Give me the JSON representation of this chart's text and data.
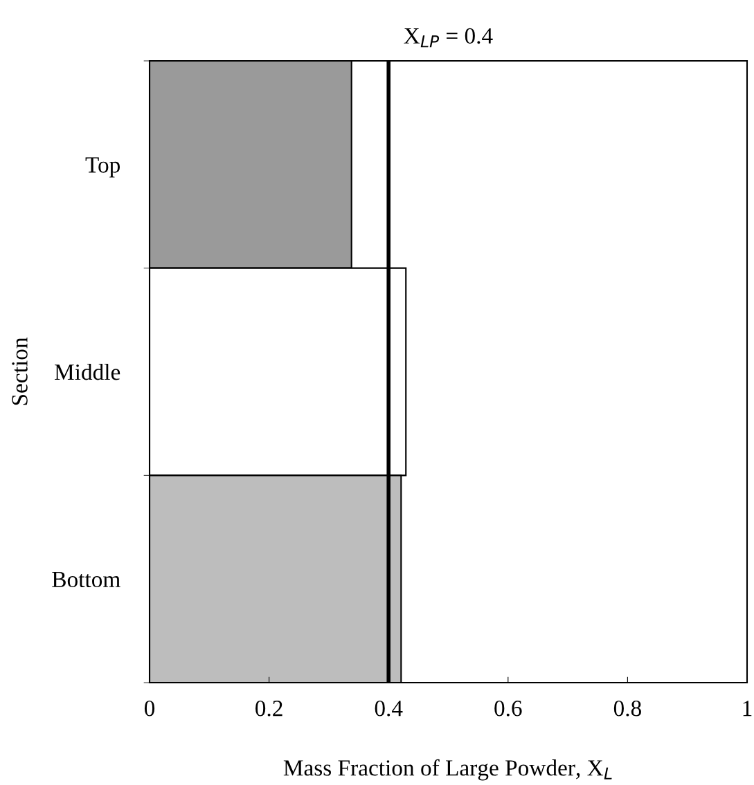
{
  "chart_data": {
    "type": "bar",
    "orientation": "horizontal",
    "title": "X$_{LP}$ = 0.4",
    "xlabel": "Mass Fraction of Large Powder, X$_{L}$",
    "ylabel": "Section",
    "categories": [
      "Top",
      "Middle",
      "Bottom"
    ],
    "values": [
      0.338,
      0.429,
      0.421
    ],
    "colors": [
      "#9a9a9a",
      "#ffffff",
      "#bdbdbd"
    ],
    "xlim": [
      0,
      1
    ],
    "xticks": [
      0,
      0.2,
      0.4,
      0.6,
      0.8,
      1
    ],
    "ref_lines": [
      {
        "axis": "x",
        "value": 0.4,
        "color": "#000000"
      }
    ],
    "grid": false,
    "legend": false
  }
}
